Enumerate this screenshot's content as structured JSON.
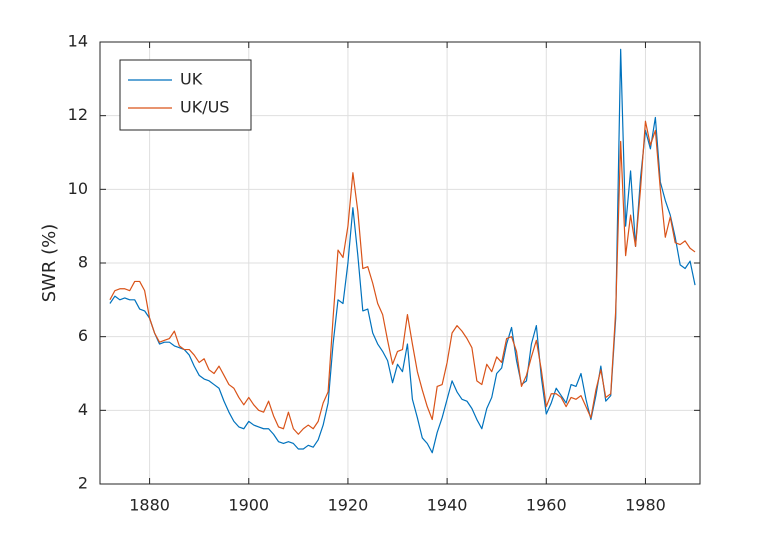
{
  "chart_data": {
    "type": "line",
    "ylabel": "SWR (%)",
    "x": [
      1872,
      1873,
      1874,
      1875,
      1876,
      1877,
      1878,
      1879,
      1880,
      1881,
      1882,
      1883,
      1884,
      1885,
      1886,
      1887,
      1888,
      1889,
      1890,
      1891,
      1892,
      1893,
      1894,
      1895,
      1896,
      1897,
      1898,
      1899,
      1900,
      1901,
      1902,
      1903,
      1904,
      1905,
      1906,
      1907,
      1908,
      1909,
      1910,
      1911,
      1912,
      1913,
      1914,
      1915,
      1916,
      1917,
      1918,
      1919,
      1920,
      1921,
      1922,
      1923,
      1924,
      1925,
      1926,
      1927,
      1928,
      1929,
      1930,
      1931,
      1932,
      1933,
      1934,
      1935,
      1936,
      1937,
      1938,
      1939,
      1940,
      1941,
      1942,
      1943,
      1944,
      1945,
      1946,
      1947,
      1948,
      1949,
      1950,
      1951,
      1952,
      1953,
      1954,
      1955,
      1956,
      1957,
      1958,
      1959,
      1960,
      1961,
      1962,
      1963,
      1964,
      1965,
      1966,
      1967,
      1968,
      1969,
      1970,
      1971,
      1972,
      1973,
      1974,
      1975,
      1976,
      1977,
      1978,
      1979,
      1980,
      1981,
      1982,
      1983,
      1984,
      1985,
      1986,
      1987,
      1988,
      1989,
      1990
    ],
    "series": [
      {
        "name": "UK",
        "color": "#0072bd",
        "values": [
          6.9,
          7.1,
          7.0,
          7.05,
          7.0,
          7.0,
          6.75,
          6.7,
          6.5,
          6.1,
          5.8,
          5.85,
          5.85,
          5.75,
          5.7,
          5.65,
          5.5,
          5.2,
          4.95,
          4.85,
          4.8,
          4.7,
          4.6,
          4.25,
          3.95,
          3.7,
          3.55,
          3.5,
          3.7,
          3.6,
          3.55,
          3.5,
          3.5,
          3.35,
          3.15,
          3.1,
          3.15,
          3.1,
          2.95,
          2.95,
          3.05,
          3.0,
          3.2,
          3.6,
          4.2,
          5.8,
          7.0,
          6.9,
          8.0,
          9.5,
          8.2,
          6.7,
          6.75,
          6.1,
          5.8,
          5.6,
          5.35,
          4.75,
          5.25,
          5.05,
          5.8,
          4.3,
          3.8,
          3.25,
          3.1,
          2.85,
          3.4,
          3.8,
          4.3,
          4.8,
          4.5,
          4.3,
          4.25,
          4.05,
          3.75,
          3.5,
          4.05,
          4.35,
          5.0,
          5.15,
          5.8,
          6.25,
          5.35,
          4.7,
          4.8,
          5.8,
          6.3,
          4.9,
          3.9,
          4.2,
          4.6,
          4.4,
          4.2,
          4.7,
          4.65,
          5.0,
          4.3,
          3.75,
          4.4,
          5.2,
          4.25,
          4.4,
          6.5,
          13.8,
          9.0,
          10.5,
          8.45,
          10.3,
          11.6,
          11.1,
          11.95,
          10.2,
          9.7,
          9.3,
          8.7,
          7.95,
          7.85,
          8.05,
          7.4
        ]
      },
      {
        "name": "UK/US",
        "color": "#d95319",
        "values": [
          7.0,
          7.25,
          7.3,
          7.3,
          7.25,
          7.5,
          7.5,
          7.25,
          6.5,
          6.1,
          5.85,
          5.9,
          5.95,
          6.15,
          5.75,
          5.65,
          5.65,
          5.5,
          5.3,
          5.4,
          5.1,
          5.0,
          5.2,
          4.95,
          4.7,
          4.6,
          4.35,
          4.15,
          4.35,
          4.15,
          4.0,
          3.95,
          4.25,
          3.85,
          3.55,
          3.5,
          3.95,
          3.5,
          3.35,
          3.5,
          3.6,
          3.5,
          3.7,
          4.2,
          4.5,
          6.5,
          8.35,
          8.15,
          9.0,
          10.45,
          9.4,
          7.85,
          7.9,
          7.45,
          6.9,
          6.6,
          5.9,
          5.25,
          5.6,
          5.65,
          6.6,
          5.8,
          5.05,
          4.55,
          4.1,
          3.75,
          4.65,
          4.7,
          5.3,
          6.1,
          6.3,
          6.15,
          5.95,
          5.7,
          4.8,
          4.7,
          5.25,
          5.05,
          5.45,
          5.3,
          5.95,
          6.0,
          5.6,
          4.65,
          4.95,
          5.45,
          5.9,
          5.1,
          4.1,
          4.45,
          4.45,
          4.35,
          4.1,
          4.35,
          4.3,
          4.4,
          4.1,
          3.8,
          4.55,
          5.1,
          4.35,
          4.45,
          6.7,
          11.3,
          8.2,
          9.3,
          8.45,
          10.0,
          11.85,
          11.2,
          11.6,
          10.0,
          8.7,
          9.25,
          8.55,
          8.5,
          8.6,
          8.4,
          8.3
        ]
      }
    ],
    "xlim": [
      1870,
      1991
    ],
    "xticks": [
      1880,
      1900,
      1920,
      1940,
      1960,
      1980
    ],
    "ylim": [
      2,
      14
    ],
    "yticks": [
      2,
      4,
      6,
      8,
      10,
      12,
      14
    ],
    "grid": true,
    "legend": "upper left"
  }
}
